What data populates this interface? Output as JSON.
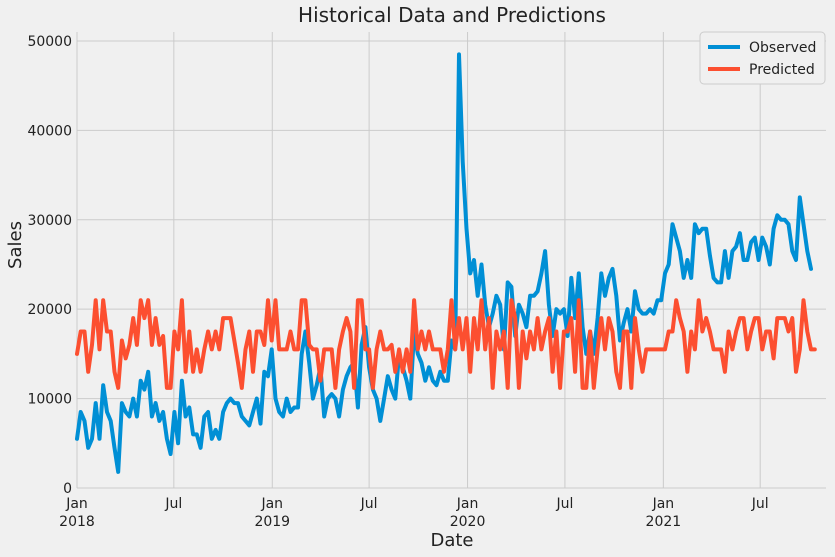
{
  "chart_data": {
    "type": "line",
    "title": "Historical Data and Predictions",
    "xlabel": "Date",
    "ylabel": "Sales",
    "xlim": [
      "2018-01-01",
      "2021-11-01"
    ],
    "ylim": [
      0,
      51000
    ],
    "yticks": [
      0,
      10000,
      20000,
      30000,
      40000,
      50000
    ],
    "xticks": [
      {
        "date": "2018-01-01",
        "label": "Jan",
        "sublabel": "2018"
      },
      {
        "date": "2018-07-01",
        "label": "Jul",
        "sublabel": ""
      },
      {
        "date": "2019-01-01",
        "label": "Jan",
        "sublabel": "2019"
      },
      {
        "date": "2019-07-01",
        "label": "Jul",
        "sublabel": ""
      },
      {
        "date": "2020-01-01",
        "label": "Jan",
        "sublabel": "2020"
      },
      {
        "date": "2020-07-01",
        "label": "Jul",
        "sublabel": ""
      },
      {
        "date": "2021-01-01",
        "label": "Jan",
        "sublabel": "2021"
      },
      {
        "date": "2021-07-01",
        "label": "Jul",
        "sublabel": ""
      }
    ],
    "grid": true,
    "legend_position": "top-right",
    "frequency": "weekly",
    "start_date": "2018-01-01",
    "series": [
      {
        "name": "Observed",
        "color": "#008fd5",
        "values": [
          5500,
          8500,
          7500,
          4500,
          5500,
          9500,
          5500,
          11500,
          8500,
          7500,
          4500,
          1800,
          9500,
          8500,
          8000,
          10000,
          8000,
          12000,
          11000,
          13000,
          8000,
          9500,
          7500,
          8500,
          5500,
          3800,
          8500,
          5000,
          12000,
          8000,
          9000,
          6000,
          6000,
          4500,
          8000,
          8500,
          5500,
          6500,
          5500,
          8500,
          9500,
          10000,
          9500,
          9500,
          8000,
          7500,
          7000,
          8500,
          10000,
          7200,
          13000,
          12500,
          15500,
          10000,
          8500,
          8000,
          10000,
          8500,
          9000,
          9000,
          15000,
          17500,
          14000,
          10000,
          11500,
          13500,
          8000,
          10000,
          10500,
          10000,
          8000,
          11000,
          12500,
          13500,
          14000,
          9000,
          16000,
          18000,
          13500,
          11000,
          10000,
          7500,
          10000,
          12500,
          11000,
          10000,
          15000,
          13500,
          12000,
          10000,
          17500,
          15000,
          14000,
          12000,
          13500,
          12000,
          11500,
          13000,
          12000,
          12000,
          16500,
          15500,
          48500,
          36500,
          29000,
          24000,
          25500,
          21500,
          25000,
          20500,
          18000,
          19500,
          21500,
          20500,
          15500,
          23000,
          22500,
          17000,
          20500,
          19500,
          18000,
          21500,
          21500,
          22000,
          24000,
          26500,
          20500,
          17000,
          20000,
          19500,
          20000,
          17000,
          23500,
          19000,
          24000,
          18000,
          15000,
          17500,
          15000,
          19000,
          24000,
          21500,
          23500,
          24500,
          21500,
          16500,
          18500,
          20000,
          17500,
          22000,
          20000,
          19500,
          19500,
          20000,
          19500,
          21000,
          21000,
          24000,
          25000,
          29500,
          28000,
          26500,
          23500,
          25500,
          23500,
          29500,
          28500,
          29000,
          29000,
          26000,
          23500,
          23000,
          23000,
          26500,
          23500,
          26500,
          27000,
          28500,
          25500,
          25500,
          27500,
          28000,
          25500,
          28000,
          27000,
          25000,
          29000,
          30500,
          30000,
          30000,
          29500,
          26500,
          25500,
          32500,
          29500,
          26500,
          24500
        ]
      },
      {
        "name": "Predicted",
        "color": "#fc4f30",
        "values": [
          15000,
          17500,
          17500,
          13000,
          16000,
          21000,
          15500,
          21000,
          17500,
          17500,
          13000,
          11200,
          16500,
          14500,
          16000,
          19000,
          16000,
          21000,
          19000,
          21000,
          16000,
          19000,
          16000,
          17000,
          11200,
          11200,
          17500,
          15500,
          21000,
          13000,
          17500,
          13000,
          15500,
          13000,
          15500,
          17500,
          15500,
          17500,
          15500,
          19000,
          19000,
          19000,
          16500,
          14000,
          11200,
          15500,
          17500,
          13000,
          17500,
          17500,
          16000,
          21000,
          16500,
          21000,
          15500,
          15500,
          15500,
          17500,
          15500,
          15500,
          21000,
          21000,
          16000,
          15500,
          15500,
          12000,
          15500,
          15500,
          15500,
          11200,
          15500,
          17500,
          19000,
          17500,
          11200,
          21000,
          21000,
          15500,
          15500,
          11200,
          15500,
          17500,
          15500,
          15500,
          16000,
          13000,
          15500,
          13000,
          15500,
          13000,
          21000,
          15500,
          17500,
          15500,
          17500,
          15500,
          15500,
          15500,
          13000,
          15500,
          21000,
          15500,
          19000,
          15500,
          19000,
          13000,
          19000,
          15500,
          21000,
          15500,
          19000,
          11200,
          17500,
          15500,
          17500,
          11200,
          21000,
          19000,
          11200,
          17500,
          14500,
          17500,
          15500,
          19000,
          15500,
          17500,
          19000,
          13000,
          17500,
          11200,
          17500,
          17500,
          19000,
          13000,
          21000,
          11200,
          11200,
          17500,
          11200,
          15500,
          19000,
          15500,
          19000,
          17500,
          13000,
          11200,
          17500,
          17500,
          11200,
          19000,
          15500,
          13000,
          15500,
          15500,
          15500,
          15500,
          15500,
          15500,
          17500,
          17500,
          21000,
          19000,
          17500,
          13000,
          17500,
          15500,
          21000,
          17500,
          19000,
          17500,
          15500,
          15500,
          15500,
          13000,
          17500,
          15500,
          17500,
          19000,
          19000,
          15500,
          17500,
          19000,
          19000,
          15500,
          17500,
          17500,
          14500,
          19000,
          19000,
          19000,
          17500,
          19000,
          13000,
          15500,
          21000,
          17500,
          15500,
          15500
        ]
      }
    ]
  }
}
